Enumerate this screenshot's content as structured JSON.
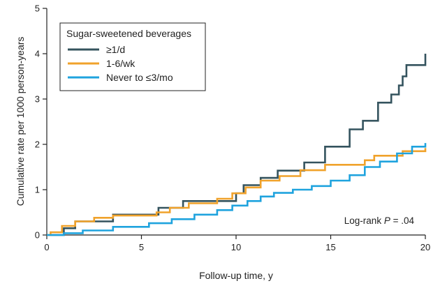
{
  "chart_data": {
    "type": "line",
    "step": true,
    "title": "",
    "xlabel": "Follow-up time, y",
    "ylabel": "Cumulative rate per 1000 person-years",
    "xlim": [
      0,
      20
    ],
    "ylim": [
      0,
      5
    ],
    "xticks": [
      0,
      5,
      10,
      15,
      20
    ],
    "yticks": [
      0,
      1,
      2,
      3,
      4,
      5
    ],
    "grid": false,
    "legend": {
      "title": "Sugar-sweetened beverages",
      "position": "top-left"
    },
    "annotation": {
      "prefix": "Log-rank ",
      "stat": "P",
      "suffix": " = .04",
      "position": "bottom-right"
    },
    "series": [
      {
        "name": "≥1/d",
        "color": "#34535e",
        "x": [
          0,
          0.9,
          1.5,
          3.5,
          5.9,
          7.2,
          10,
          10.4,
          11.3,
          12.2,
          13.6,
          14.7,
          16.0,
          16.7,
          17.5,
          18.2,
          18.6,
          18.8,
          19.0,
          19.2,
          19.5,
          20
        ],
        "y": [
          0,
          0.15,
          0.3,
          0.45,
          0.6,
          0.75,
          0.92,
          1.1,
          1.26,
          1.42,
          1.6,
          1.95,
          2.33,
          2.52,
          2.92,
          3.1,
          3.3,
          3.5,
          3.75,
          3.75,
          3.75,
          4.0
        ]
      },
      {
        "name": "1-6/wk",
        "color": "#f0a22b",
        "x": [
          0,
          0.2,
          0.8,
          1.5,
          2.5,
          3.5,
          5.8,
          6.5,
          7.5,
          9.0,
          9.8,
          10.5,
          11.3,
          12.3,
          13.4,
          14.7,
          16.8,
          17.3,
          18.8,
          20
        ],
        "y": [
          0,
          0.06,
          0.2,
          0.3,
          0.38,
          0.43,
          0.5,
          0.6,
          0.7,
          0.8,
          0.92,
          1.05,
          1.2,
          1.3,
          1.43,
          1.55,
          1.65,
          1.75,
          1.85,
          1.92
        ]
      },
      {
        "name": "Never to ≤3/mo",
        "color": "#1fa3de",
        "x": [
          0,
          0.9,
          1.9,
          3.5,
          5.4,
          6.6,
          7.8,
          9.0,
          9.8,
          10.6,
          11.3,
          12.0,
          13.0,
          14.0,
          15.0,
          16.0,
          16.8,
          17.6,
          18.5,
          19.3,
          20
        ],
        "y": [
          0,
          0.04,
          0.1,
          0.18,
          0.26,
          0.35,
          0.45,
          0.55,
          0.65,
          0.75,
          0.85,
          0.93,
          1.0,
          1.08,
          1.2,
          1.32,
          1.5,
          1.62,
          1.8,
          1.95,
          2.03
        ]
      }
    ]
  }
}
